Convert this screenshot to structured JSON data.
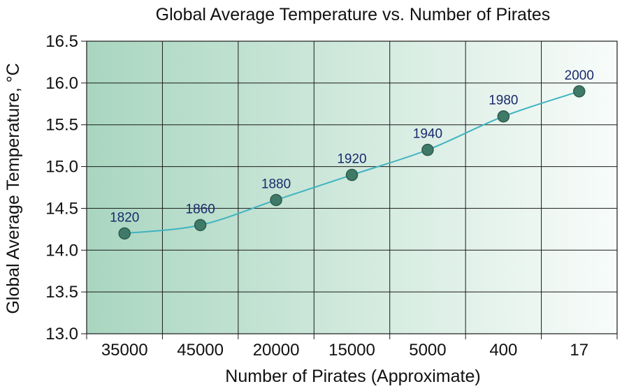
{
  "chart_data": {
    "type": "line",
    "title": "Global Average Temperature vs. Number of Pirates",
    "xlabel": "Number of Pirates (Approximate)",
    "ylabel": "Global Average Temperature, °C",
    "categories": [
      "35000",
      "45000",
      "20000",
      "15000",
      "5000",
      "400",
      "17"
    ],
    "series": [
      {
        "values": [
          14.2,
          14.3,
          14.6,
          14.9,
          15.2,
          15.6,
          15.9
        ],
        "point_labels": [
          "1820",
          "1860",
          "1880",
          "1920",
          "1940",
          "1980",
          "2000"
        ]
      }
    ],
    "ylim": [
      13.0,
      16.5
    ],
    "yticks": [
      "13.0",
      "13.5",
      "14.0",
      "14.5",
      "15.0",
      "15.5",
      "16.0",
      "16.5"
    ],
    "grid": true,
    "colors": {
      "line": "#3fb3c0",
      "marker": "#3f7a68",
      "marker_edge": "#2c5a4b",
      "bg_left": "#a9d6c0",
      "bg_right": "#f8fcfa",
      "point_label": "#1a2a6c"
    }
  }
}
